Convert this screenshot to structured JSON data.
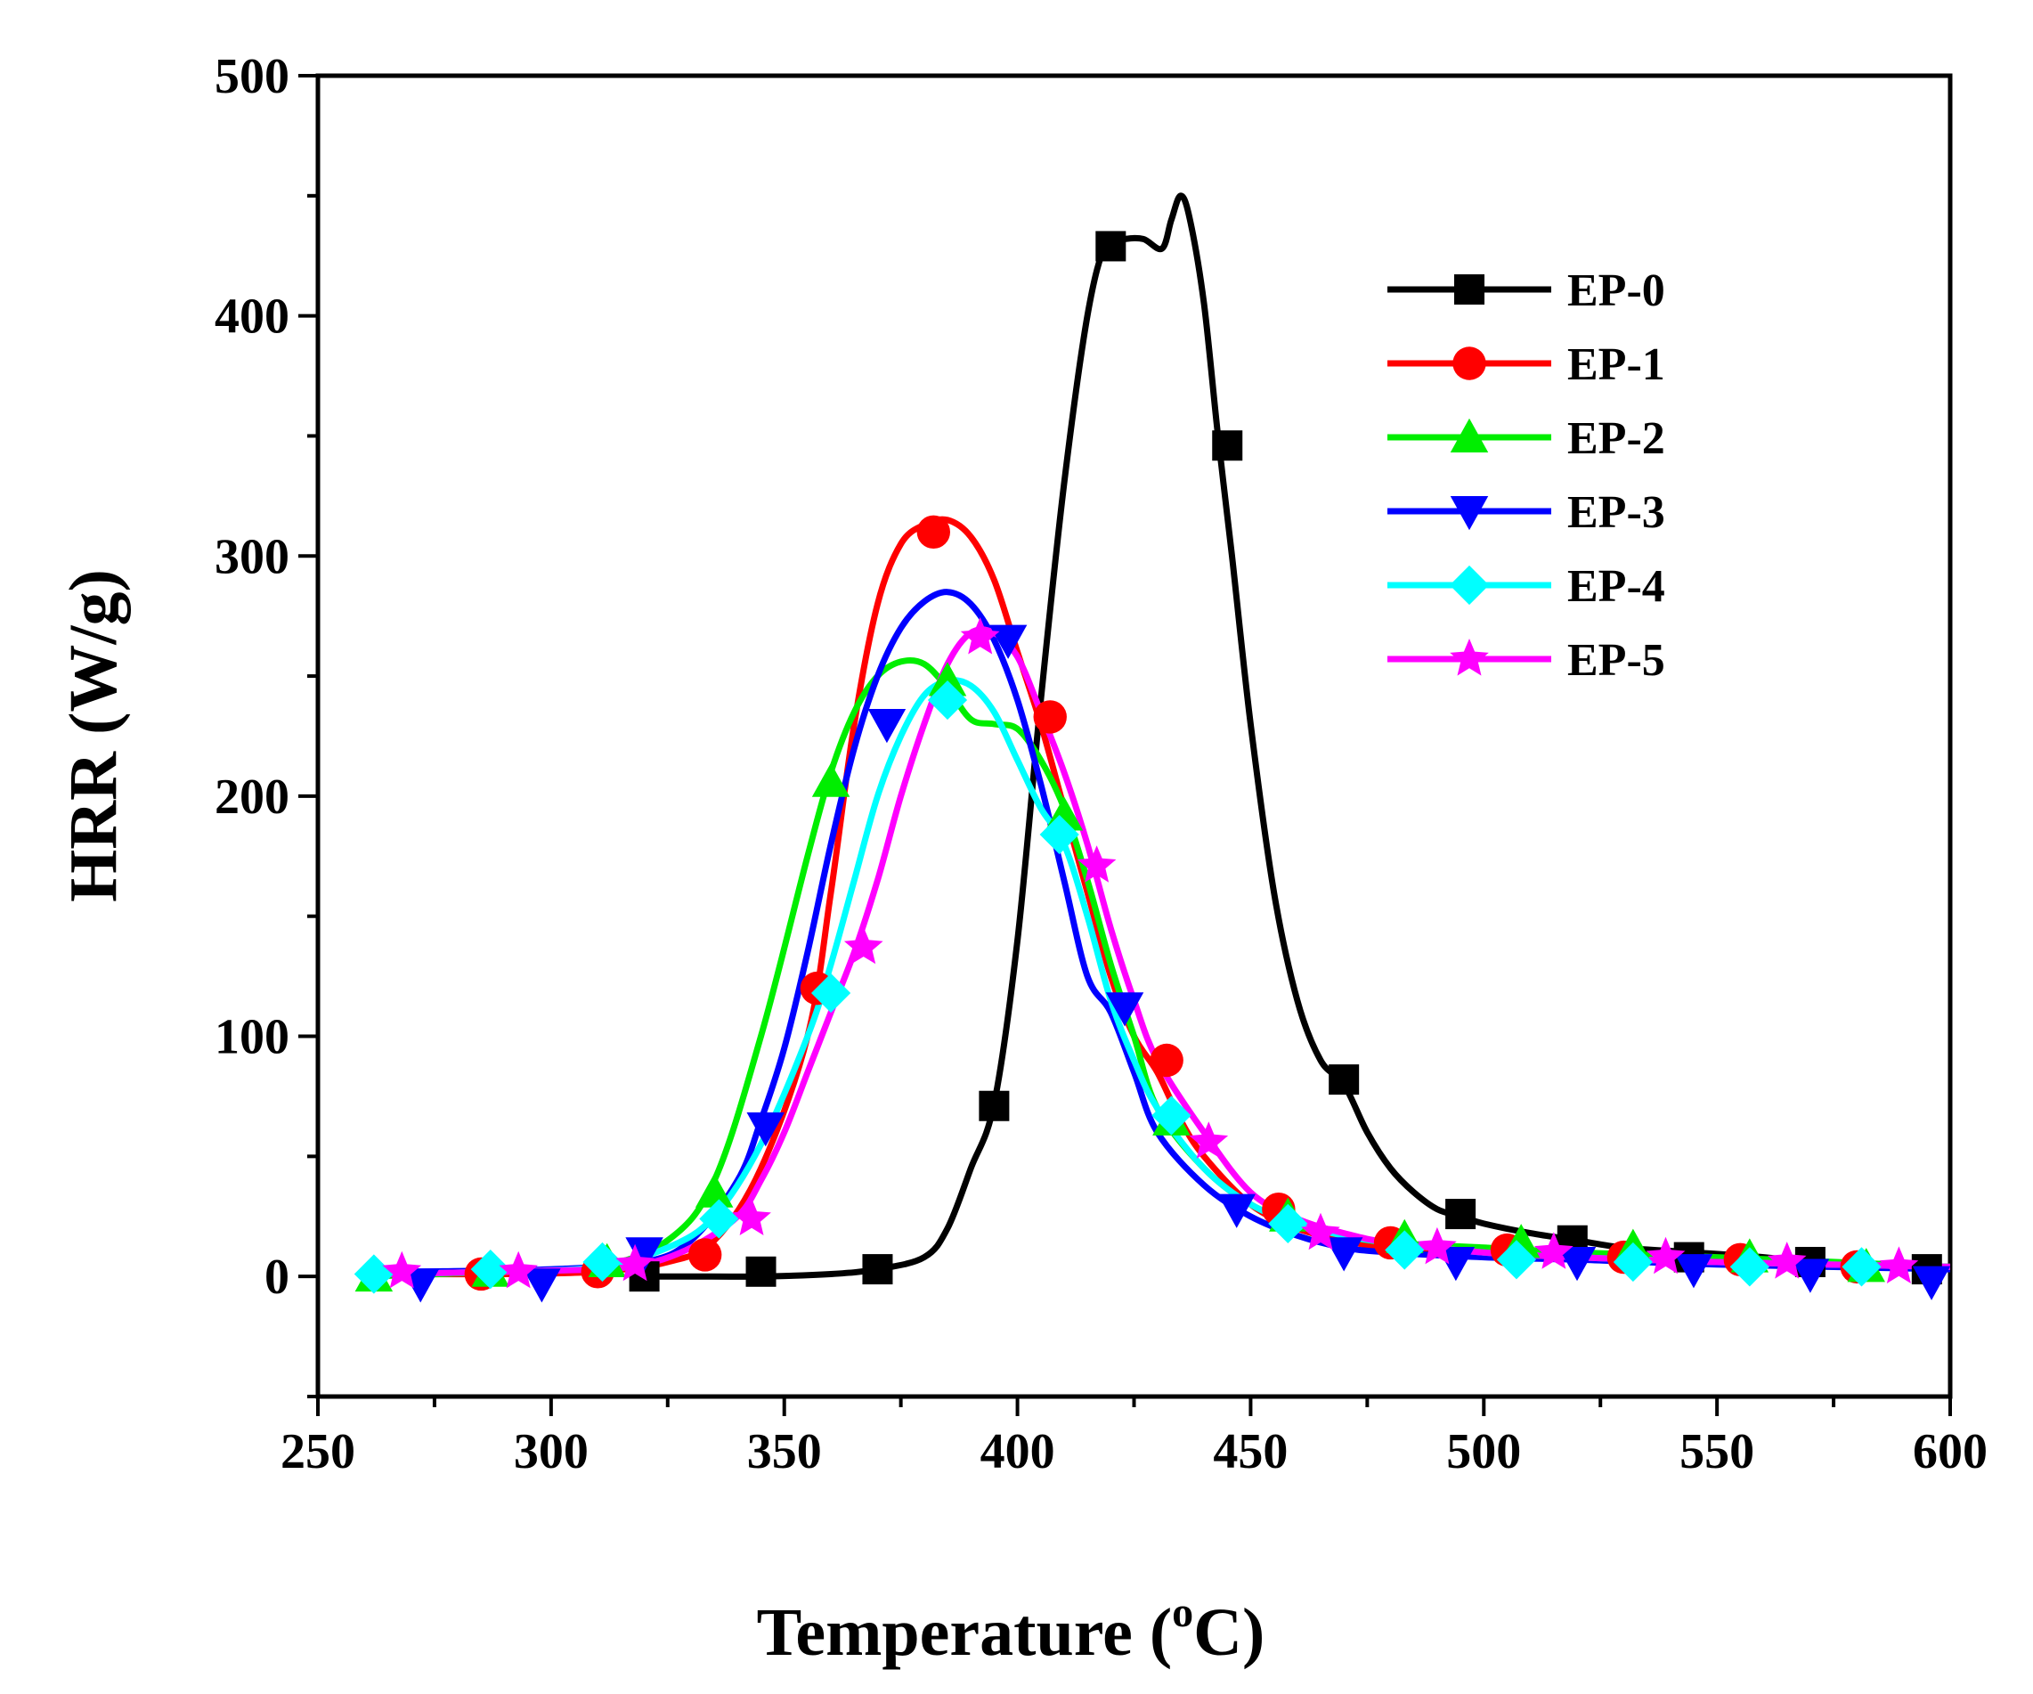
{
  "chart_data": {
    "type": "line",
    "xlabel_main": "Temperature (",
    "xlabel_sup": "o",
    "xlabel_end": "C)",
    "ylabel": "HRR (W/g)",
    "xlim": [
      250,
      600
    ],
    "ylim": [
      -50,
      500
    ],
    "xticks": [
      250,
      300,
      350,
      400,
      450,
      500,
      550,
      600
    ],
    "yticks": [
      0,
      100,
      200,
      300,
      400,
      500
    ],
    "legend_position": "top-right",
    "series": [
      {
        "name": "EP-0",
        "color": "#000000",
        "marker": "square",
        "x": [
          320,
          330,
          345,
          360,
          370,
          380,
          385,
          390,
          395,
          400,
          405,
          410,
          415,
          419,
          423,
          427,
          431,
          433,
          435,
          437,
          440,
          443,
          446,
          450,
          455,
          460,
          465,
          470,
          475,
          480,
          485,
          490,
          495,
          500,
          510,
          520,
          530,
          545,
          560,
          570,
          600
        ],
        "y": [
          0,
          0,
          0,
          1,
          3,
          8,
          20,
          45,
          72,
          140,
          240,
          330,
          400,
          430,
          432,
          432,
          428,
          440,
          450,
          440,
          405,
          350,
          300,
          230,
          160,
          115,
          90,
          80,
          60,
          45,
          35,
          28,
          25,
          22,
          18,
          15,
          12,
          10,
          8,
          6,
          4
        ],
        "marker_x": [
          320,
          345,
          370,
          395,
          420,
          445,
          470,
          495,
          519,
          544,
          570,
          595
        ],
        "marker_y": [
          0,
          2,
          3,
          71,
          429,
          346,
          82,
          26,
          15,
          8,
          6,
          3
        ]
      },
      {
        "name": "EP-1",
        "color": "#ff0000",
        "marker": "circle",
        "x": [
          265,
          290,
          310,
          325,
          335,
          345,
          355,
          360,
          365,
          370,
          375,
          380,
          385,
          390,
          395,
          400,
          405,
          410,
          415,
          420,
          425,
          430,
          435,
          440,
          450,
          460,
          470,
          480,
          500,
          520,
          550,
          600
        ],
        "y": [
          1,
          1,
          2,
          6,
          15,
          45,
          100,
          160,
          230,
          280,
          305,
          313,
          315,
          308,
          290,
          260,
          230,
          195,
          160,
          125,
          100,
          85,
          65,
          50,
          30,
          20,
          15,
          12,
          10,
          9,
          7,
          4
        ],
        "marker_x": [
          285,
          310,
          333,
          357,
          382,
          407,
          432,
          456,
          480,
          505,
          530,
          555,
          580
        ],
        "marker_y": [
          1,
          2,
          9,
          120,
          310,
          233,
          90,
          28,
          14,
          11,
          8,
          7,
          4
        ]
      },
      {
        "name": "EP-2",
        "color": "#00ee00",
        "marker": "triangle-up",
        "x": [
          260,
          290,
          310,
          325,
          335,
          345,
          355,
          360,
          365,
          370,
          375,
          380,
          385,
          390,
          395,
          400,
          405,
          410,
          415,
          420,
          425,
          430,
          440,
          450,
          460,
          470,
          480,
          500,
          520,
          550,
          600
        ],
        "y": [
          0,
          2,
          4,
          15,
          40,
          100,
          175,
          210,
          235,
          250,
          256,
          255,
          245,
          232,
          230,
          228,
          215,
          195,
          165,
          130,
          100,
          70,
          45,
          30,
          22,
          17,
          14,
          12,
          10,
          8,
          4
        ],
        "marker_x": [
          262,
          287,
          312,
          335,
          360,
          385,
          410,
          433,
          458,
          483,
          508,
          532,
          557,
          582
        ],
        "marker_y": [
          0,
          2,
          6,
          35,
          206,
          248,
          192,
          65,
          25,
          16,
          14,
          12,
          8,
          4
        ]
      },
      {
        "name": "EP-3",
        "color": "#0000ff",
        "marker": "triangle-down",
        "x": [
          270,
          300,
          320,
          330,
          340,
          345,
          350,
          355,
          360,
          365,
          370,
          375,
          380,
          385,
          390,
          395,
          400,
          405,
          410,
          415,
          420,
          425,
          430,
          440,
          450,
          460,
          470,
          480,
          500,
          520,
          550,
          600
        ],
        "y": [
          2,
          3,
          6,
          15,
          40,
          65,
          95,
          135,
          180,
          220,
          250,
          270,
          281,
          285,
          280,
          265,
          240,
          205,
          165,
          125,
          110,
          85,
          60,
          38,
          25,
          17,
          12,
          10,
          8,
          7,
          5,
          3
        ],
        "marker_x": [
          272,
          298,
          320,
          346,
          372,
          398,
          423,
          447,
          470,
          494,
          520,
          545,
          570,
          596
        ],
        "marker_y": [
          -3,
          -3,
          10,
          62,
          230,
          265,
          112,
          28,
          10,
          6,
          6,
          3,
          1,
          -2
        ]
      },
      {
        "name": "EP-4",
        "color": "#00ffff",
        "marker": "diamond",
        "x": [
          260,
          290,
          310,
          325,
          335,
          345,
          355,
          360,
          365,
          370,
          375,
          380,
          385,
          390,
          395,
          400,
          405,
          410,
          415,
          420,
          425,
          430,
          440,
          450,
          460,
          470,
          480,
          500,
          520,
          550,
          600
        ],
        "y": [
          1,
          2,
          4,
          12,
          25,
          55,
          100,
          130,
          165,
          200,
          225,
          242,
          248,
          246,
          235,
          215,
          195,
          180,
          150,
          115,
          90,
          70,
          45,
          30,
          22,
          17,
          14,
          10,
          8,
          6,
          4
        ],
        "marker_x": [
          262,
          287,
          311,
          336,
          360,
          385,
          409,
          433,
          458,
          483,
          507,
          532,
          557,
          581
        ],
        "marker_y": [
          1,
          3,
          6,
          24,
          118,
          240,
          184,
          67,
          22,
          11,
          7,
          6,
          4,
          4
        ]
      },
      {
        "name": "EP-5",
        "color": "#ff00ff",
        "marker": "star",
        "x": [
          265,
          290,
          310,
          320,
          330,
          340,
          345,
          350,
          355,
          360,
          365,
          370,
          375,
          380,
          385,
          390,
          395,
          400,
          405,
          410,
          415,
          420,
          425,
          430,
          440,
          450,
          460,
          470,
          480,
          500,
          520,
          550,
          600
        ],
        "y": [
          1,
          2,
          3,
          5,
          12,
          25,
          40,
          60,
          85,
          110,
          135,
          165,
          200,
          230,
          255,
          268,
          268,
          258,
          235,
          210,
          180,
          145,
          115,
          90,
          60,
          35,
          24,
          18,
          14,
          10,
          8,
          6,
          4
        ],
        "marker_x": [
          268,
          293,
          318,
          343,
          367,
          392,
          417,
          441,
          465,
          490,
          515,
          539,
          565,
          589
        ],
        "marker_y": [
          2,
          2,
          5,
          24,
          137,
          266,
          171,
          56,
          18,
          12,
          10,
          8,
          6,
          4
        ]
      }
    ]
  }
}
